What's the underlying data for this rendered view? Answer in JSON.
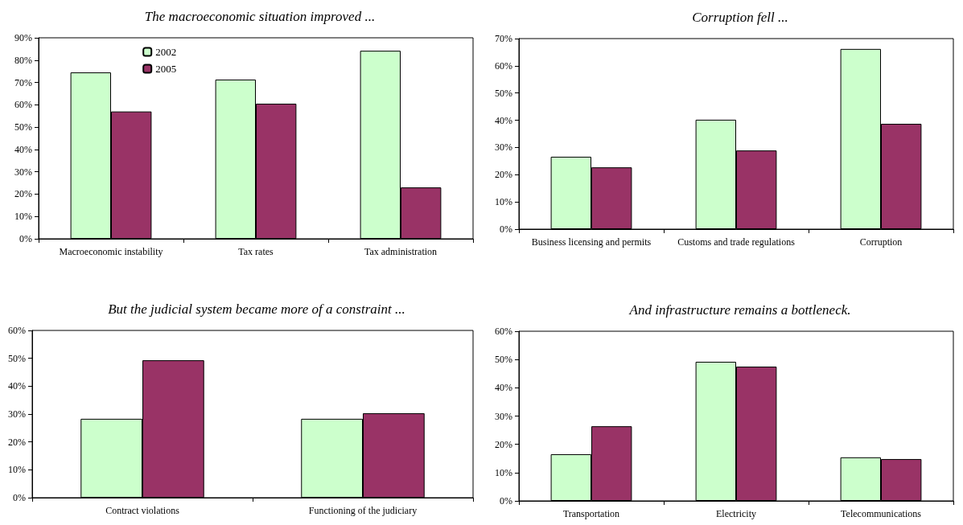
{
  "chart_data": [
    {
      "type": "bar",
      "title": "The macroeconomic situation improved ...",
      "categories": [
        "Macroeconomic instability",
        "Tax rates",
        "Tax administration"
      ],
      "series": [
        {
          "name": "2002",
          "color": "#ccffcc",
          "values": [
            74.5,
            71.3,
            84.2
          ]
        },
        {
          "name": "2005",
          "color": "#993366",
          "values": [
            57,
            60.5,
            23
          ]
        }
      ],
      "ylim": [
        0,
        90
      ],
      "yticks": [
        {
          "value": 0,
          "label": "0%"
        },
        {
          "value": 10,
          "label": "10%"
        },
        {
          "value": 20,
          "label": "20%"
        },
        {
          "value": 30,
          "label": "30%"
        },
        {
          "value": 40,
          "label": "40%"
        },
        {
          "value": 50,
          "label": "50%"
        },
        {
          "value": 60,
          "label": "60%"
        },
        {
          "value": 70,
          "label": "70%"
        },
        {
          "value": 80,
          "label": "80%"
        },
        {
          "value": 90,
          "label": "90%"
        }
      ],
      "grid": false,
      "legend": "top left"
    },
    {
      "type": "bar",
      "title": "Corruption fell ...",
      "categories": [
        "Business licensing and permits",
        "Customs and trade regulations",
        "Corruption"
      ],
      "series": [
        {
          "color": "#ccffcc",
          "values": [
            26.6,
            40.2,
            66.2
          ]
        },
        {
          "color": "#993366",
          "values": [
            22.7,
            28.9,
            38.7
          ]
        }
      ],
      "ylim": [
        0,
        70
      ],
      "yticks": [
        {
          "value": 0,
          "label": "0%"
        },
        {
          "value": 10,
          "label": "10%"
        },
        {
          "value": 20,
          "label": "20%"
        },
        {
          "value": 30,
          "label": "30%"
        },
        {
          "value": 40,
          "label": "40%"
        },
        {
          "value": 50,
          "label": "50%"
        },
        {
          "value": 60,
          "label": "60%"
        },
        {
          "value": 70,
          "label": "70%"
        }
      ],
      "grid": false,
      "legend": false
    },
    {
      "type": "bar",
      "title": "But the judicial system became more of a constraint ...",
      "categories": [
        "Contract violations",
        "Functioning of the judiciary"
      ],
      "series": [
        {
          "color": "#ccffcc",
          "values": [
            28.3,
            28.3
          ]
        },
        {
          "color": "#993366",
          "values": [
            49.3,
            30.3
          ]
        }
      ],
      "ylim": [
        0,
        60
      ],
      "yticks": [
        {
          "value": 0,
          "label": "0%"
        },
        {
          "value": 10,
          "label": "10%"
        },
        {
          "value": 20,
          "label": "20%"
        },
        {
          "value": 30,
          "label": "30%"
        },
        {
          "value": 40,
          "label": "40%"
        },
        {
          "value": 50,
          "label": "50%"
        },
        {
          "value": 60,
          "label": "60%"
        }
      ],
      "grid": false,
      "legend": false
    },
    {
      "type": "bar",
      "title": "And infrastructure remains a bottleneck.",
      "categories": [
        "Transportation",
        "Electricity",
        "Telecommunications"
      ],
      "series": [
        {
          "color": "#ccffcc",
          "values": [
            16.5,
            49.2,
            15.4
          ]
        },
        {
          "color": "#993366",
          "values": [
            26.4,
            47.5,
            14.8
          ]
        }
      ],
      "ylim": [
        0,
        60
      ],
      "yticks": [
        {
          "value": 0,
          "label": "0%"
        },
        {
          "value": 10,
          "label": "10%"
        },
        {
          "value": 20,
          "label": "20%"
        },
        {
          "value": 30,
          "label": "30%"
        },
        {
          "value": 40,
          "label": "40%"
        },
        {
          "value": 50,
          "label": "50%"
        },
        {
          "value": 60,
          "label": "60%"
        }
      ],
      "grid": false,
      "legend": false
    }
  ]
}
